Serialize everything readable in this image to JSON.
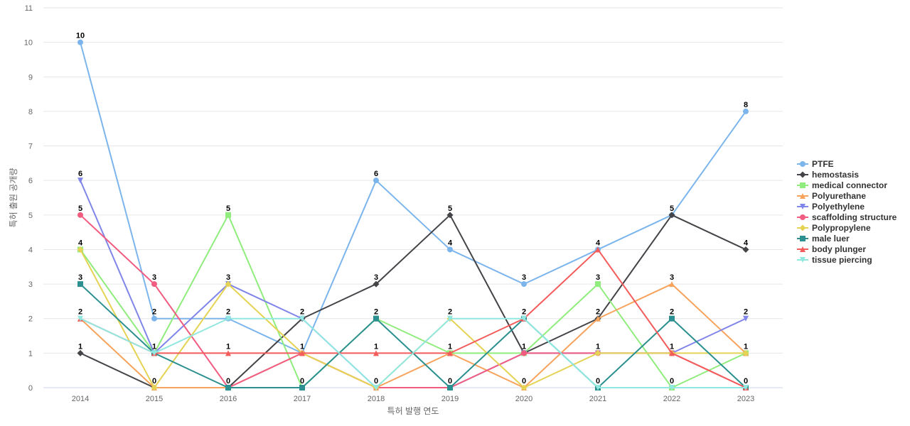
{
  "chart_data": {
    "type": "line",
    "xlabel": "특허 발행 연도",
    "ylabel": "특허 출원 공개량",
    "x": [
      "2014",
      "2015",
      "2016",
      "2017",
      "2018",
      "2019",
      "2020",
      "2021",
      "2022",
      "2023"
    ],
    "ylim": [
      0,
      11
    ],
    "yticks": [
      0,
      1,
      2,
      3,
      4,
      5,
      6,
      7,
      8,
      9,
      10,
      11
    ],
    "grid": true,
    "legend_position": "right",
    "series": [
      {
        "name": "PTFE",
        "color": "#7cb5ec",
        "marker": "circle",
        "values": [
          10,
          2,
          2,
          1,
          6,
          4,
          3,
          4,
          5,
          8
        ]
      },
      {
        "name": "hemostasis",
        "color": "#434348",
        "marker": "diamond",
        "values": [
          1,
          0,
          0,
          2,
          3,
          5,
          1,
          2,
          5,
          4
        ]
      },
      {
        "name": "medical connector",
        "color": "#90ed7d",
        "marker": "square",
        "values": [
          4,
          1,
          5,
          0,
          2,
          1,
          1,
          3,
          0,
          1
        ]
      },
      {
        "name": "Polyurethane",
        "color": "#f7a35c",
        "marker": "triangle",
        "values": [
          2,
          0,
          0,
          1,
          0,
          1,
          0,
          2,
          3,
          1
        ]
      },
      {
        "name": "Polyethylene",
        "color": "#8085e9",
        "marker": "triangle-down",
        "values": [
          6,
          1,
          3,
          2,
          0,
          0,
          1,
          1,
          1,
          2
        ]
      },
      {
        "name": "scaffolding structure",
        "color": "#f15c80",
        "marker": "circle",
        "values": [
          5,
          3,
          0,
          1,
          0,
          0,
          1,
          1,
          1,
          0
        ]
      },
      {
        "name": "Polypropylene",
        "color": "#e4d354",
        "marker": "diamond",
        "values": [
          4,
          0,
          3,
          1,
          0,
          2,
          0,
          1,
          1,
          1
        ]
      },
      {
        "name": "male luer",
        "color": "#2b908f",
        "marker": "square",
        "values": [
          3,
          1,
          0,
          0,
          2,
          0,
          2,
          0,
          2,
          0
        ]
      },
      {
        "name": "body plunger",
        "color": "#f45b5b",
        "marker": "triangle",
        "values": [
          2,
          1,
          1,
          1,
          1,
          1,
          2,
          4,
          1,
          0
        ]
      },
      {
        "name": "tissue piercing",
        "color": "#91e8e1",
        "marker": "triangle-down",
        "values": [
          2,
          1,
          2,
          2,
          0,
          2,
          2,
          0,
          0,
          0
        ]
      }
    ],
    "data_labels": [
      {
        "x": "2014",
        "text": "10",
        "value": 10
      },
      {
        "x": "2014",
        "text": "6",
        "value": 6
      },
      {
        "x": "2014",
        "text": "5",
        "value": 5
      },
      {
        "x": "2014",
        "text": "4",
        "value": 4
      },
      {
        "x": "2014",
        "text": "3",
        "value": 3
      },
      {
        "x": "2014",
        "text": "2",
        "value": 2
      },
      {
        "x": "2014",
        "text": "1",
        "value": 1
      },
      {
        "x": "2015",
        "text": "3",
        "value": 3
      },
      {
        "x": "2015",
        "text": "2",
        "value": 2
      },
      {
        "x": "2015",
        "text": "1",
        "value": 1
      },
      {
        "x": "2015",
        "text": "0",
        "value": 0
      },
      {
        "x": "2016",
        "text": "5",
        "value": 5
      },
      {
        "x": "2016",
        "text": "3",
        "value": 3
      },
      {
        "x": "2016",
        "text": "2",
        "value": 2
      },
      {
        "x": "2016",
        "text": "1",
        "value": 1
      },
      {
        "x": "2016",
        "text": "0",
        "value": 0
      },
      {
        "x": "2017",
        "text": "2",
        "value": 2
      },
      {
        "x": "2017",
        "text": "1",
        "value": 1
      },
      {
        "x": "2017",
        "text": "0",
        "value": 0
      },
      {
        "x": "2018",
        "text": "6",
        "value": 6
      },
      {
        "x": "2018",
        "text": "3",
        "value": 3
      },
      {
        "x": "2018",
        "text": "2",
        "value": 2
      },
      {
        "x": "2018",
        "text": "1",
        "value": 1
      },
      {
        "x": "2018",
        "text": "0",
        "value": 0
      },
      {
        "x": "2019",
        "text": "5",
        "value": 5
      },
      {
        "x": "2019",
        "text": "4",
        "value": 4
      },
      {
        "x": "2019",
        "text": "2",
        "value": 2
      },
      {
        "x": "2019",
        "text": "1",
        "value": 1
      },
      {
        "x": "2019",
        "text": "0",
        "value": 0
      },
      {
        "x": "2020",
        "text": "3",
        "value": 3
      },
      {
        "x": "2020",
        "text": "2",
        "value": 2
      },
      {
        "x": "2020",
        "text": "1",
        "value": 1
      },
      {
        "x": "2020",
        "text": "0",
        "value": 0
      },
      {
        "x": "2021",
        "text": "4",
        "value": 4
      },
      {
        "x": "2021",
        "text": "3",
        "value": 3
      },
      {
        "x": "2021",
        "text": "2",
        "value": 2
      },
      {
        "x": "2021",
        "text": "1",
        "value": 1
      },
      {
        "x": "2021",
        "text": "0",
        "value": 0
      },
      {
        "x": "2022",
        "text": "5",
        "value": 5
      },
      {
        "x": "2022",
        "text": "3",
        "value": 3
      },
      {
        "x": "2022",
        "text": "2",
        "value": 2
      },
      {
        "x": "2022",
        "text": "1",
        "value": 1
      },
      {
        "x": "2022",
        "text": "0",
        "value": 0
      },
      {
        "x": "2023",
        "text": "8",
        "value": 8
      },
      {
        "x": "2023",
        "text": "4",
        "value": 4
      },
      {
        "x": "2023",
        "text": "2",
        "value": 2
      },
      {
        "x": "2023",
        "text": "1",
        "value": 1
      },
      {
        "x": "2023",
        "text": "0",
        "value": 0
      }
    ]
  }
}
